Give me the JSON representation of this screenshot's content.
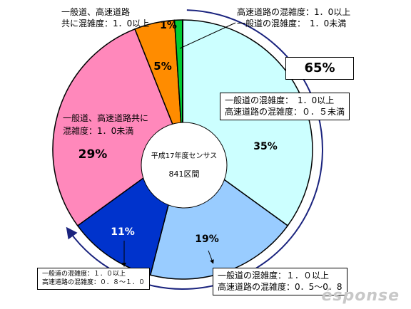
{
  "chart_data": {
    "type": "pie",
    "center_label": {
      "line1": "平成17年度センサス",
      "line2": "841区間"
    },
    "slices": [
      {
        "label_lines": [
          "一般道の混雑度：　1．0以上",
          "高速道路の混雑度：０．５未満"
        ],
        "value": 35,
        "value_label": "35%",
        "color": "#ccffff"
      },
      {
        "label_lines": [
          "一般道の混雑度：１．０以上",
          "高速道路の混雑度：0．5～0．8"
        ],
        "value": 19,
        "value_label": "19%",
        "color": "#99ccff"
      },
      {
        "label_lines": [
          "一般道の混雑度：１．０以上",
          "高速道路の混雑度：０．８～１．０"
        ],
        "value": 11,
        "value_label": "11%",
        "color": "#0033cc"
      },
      {
        "label_lines": [
          "一般道、高速道路共に",
          "混雑度：1．0未満"
        ],
        "value": 29,
        "value_label": "29%",
        "color": "#ff88bb"
      },
      {
        "label_lines": [
          "一般道、高速道路",
          "共に混雑度：1．0以上"
        ],
        "value": 5,
        "value_label": "5%",
        "color": "#ff8c00"
      },
      {
        "label_lines": [
          "高速道路の混雑度：1．0以上",
          "一般道の混雑度：　1．0未満"
        ],
        "value": 1,
        "value_label": "1%",
        "color": "#00cc33"
      }
    ],
    "group_annotation": {
      "label": "65%"
    }
  }
}
